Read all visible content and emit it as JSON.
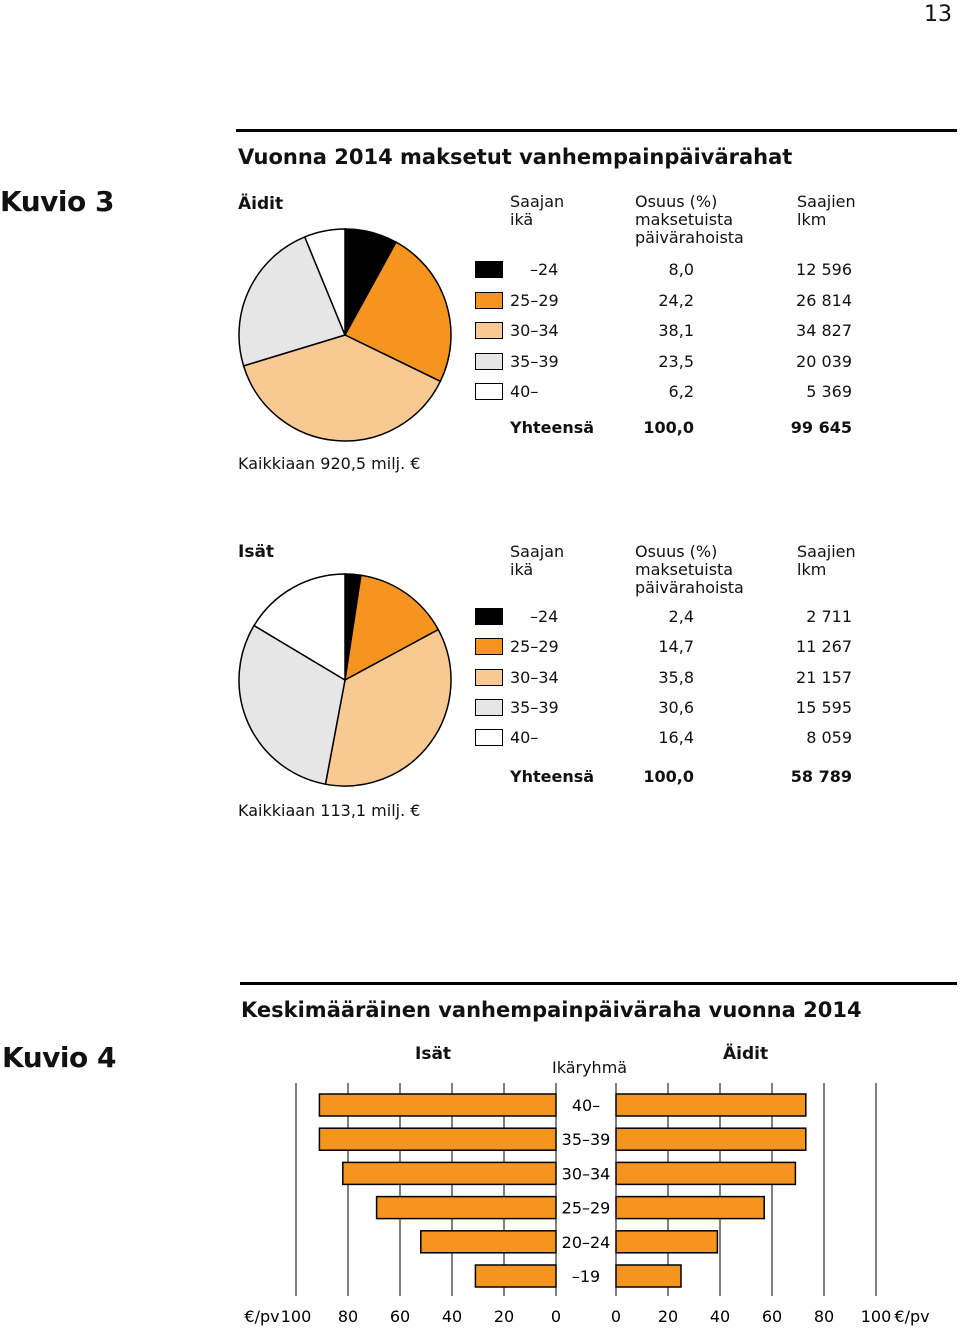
{
  "page_number": "13",
  "colors": {
    "black": "#000000",
    "orange": "#f5951f",
    "light_orange": "#f9c994",
    "light_gray": "#e6e6e6",
    "white": "#ffffff",
    "bar_fill": "#f5951f"
  },
  "figure3": {
    "label": "Kuvio 3",
    "title": "Vuonna 2014 maksetut vanhempainpäivärahat",
    "headers": {
      "age": "Saajan\nikä",
      "share": "Osuus (%)\nmaksetuista\npäivärahoista",
      "count": "Saajien\nlkm"
    },
    "total_label": "Yhteensä"
  },
  "chart_data": [
    {
      "type": "pie",
      "title": "Äidit",
      "categories": [
        "–24",
        "25–29",
        "30–34",
        "35–39",
        "40–"
      ],
      "values": [
        8.0,
        24.2,
        38.1,
        23.5,
        6.2
      ],
      "counts": [
        "12 596",
        "26 814",
        "34 827",
        "20 039",
        "5 369"
      ],
      "colors": [
        "#000000",
        "#f5951f",
        "#f9c994",
        "#e6e6e6",
        "#ffffff"
      ],
      "total_share": "100,0",
      "total_count": "99 645",
      "caption": "Kaikkiaan 920,5 milj. €"
    },
    {
      "type": "pie",
      "title": "Isät",
      "categories": [
        "–24",
        "25–29",
        "30–34",
        "35–39",
        "40–"
      ],
      "values": [
        2.4,
        14.7,
        35.8,
        30.6,
        16.4
      ],
      "counts": [
        "2 711",
        "11 267",
        "21 157",
        "15 595",
        "8 059"
      ],
      "colors": [
        "#000000",
        "#f5951f",
        "#f9c994",
        "#e6e6e6",
        "#ffffff"
      ],
      "total_share": "100,0",
      "total_count": "58 789",
      "caption": "Kaikkiaan 113,1 milj. €"
    },
    {
      "type": "bar",
      "title": "Keskimääräinen vanhempainpäiväraha vuonna 2014",
      "figure_label": "Kuvio 4",
      "left_title": "Isät",
      "right_title": "Äidit",
      "center_title": "Ikäryhmä",
      "categories": [
        "40–",
        "35–39",
        "30–34",
        "25–29",
        "20–24",
        "–19"
      ],
      "series": [
        {
          "name": "Isät",
          "values": [
            91,
            91,
            82,
            69,
            52,
            31
          ]
        },
        {
          "name": "Äidit",
          "values": [
            73,
            73,
            69,
            57,
            39,
            25
          ]
        }
      ],
      "left_ticks": [
        "€/pv",
        "100",
        "80",
        "60",
        "40",
        "20",
        "0"
      ],
      "right_ticks": [
        "0",
        "20",
        "40",
        "60",
        "80",
        "100",
        "€/pv"
      ],
      "xlim": [
        0,
        100
      ]
    }
  ]
}
